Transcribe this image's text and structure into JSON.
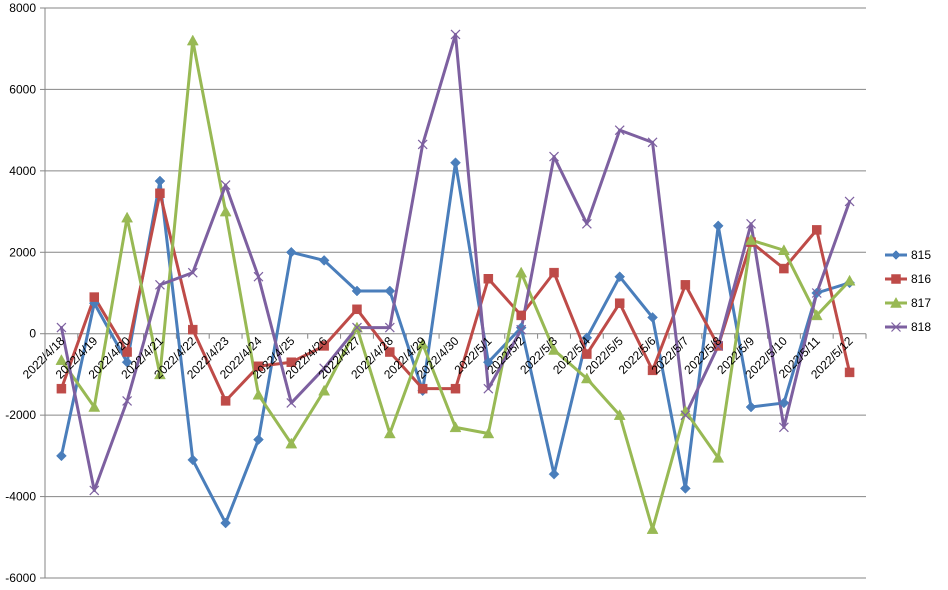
{
  "chart_data": {
    "type": "line",
    "title": "",
    "xlabel": "",
    "ylabel": "",
    "ylim": [
      -6000,
      8000
    ],
    "yticks": [
      -6000,
      -4000,
      -2000,
      0,
      2000,
      4000,
      6000,
      8000
    ],
    "grid": "horizontal",
    "legend_position": "right",
    "categories": [
      "2022/4/18",
      "2022/4/19",
      "2022/4/20",
      "2022/4/21",
      "2022/4/22",
      "2022/4/23",
      "2022/4/24",
      "2022/4/25",
      "2022/4/26",
      "2022/4/27",
      "2022/4/28",
      "2022/4/29",
      "2022/4/30",
      "2022/5/1",
      "2022/5/2",
      "2022/5/3",
      "2022/5/4",
      "2022/5/5",
      "2022/5/6",
      "2022/5/7",
      "2022/5/8",
      "2022/5/9",
      "2022/5/10",
      "2022/5/11",
      "2022/5/12"
    ],
    "series": [
      {
        "name": "815",
        "color": "#4A7EBB",
        "marker": "diamond",
        "values": [
          -3000,
          750,
          -700,
          3750,
          -3100,
          -4650,
          -2600,
          2000,
          1800,
          1050,
          1050,
          -1400,
          4200,
          -700,
          150,
          -3450,
          -100,
          1400,
          400,
          -3800,
          2650,
          -1800,
          -1700,
          1000,
          1250
        ]
      },
      {
        "name": "816",
        "color": "#BE4B48",
        "marker": "square",
        "values": [
          -1350,
          900,
          -450,
          3450,
          100,
          -1650,
          -800,
          -700,
          -300,
          600,
          -450,
          -1350,
          -1350,
          1350,
          450,
          1500,
          -500,
          750,
          -900,
          1200,
          -300,
          2250,
          1600,
          2550,
          -950
        ]
      },
      {
        "name": "817",
        "color": "#98B954",
        "marker": "triangle",
        "values": [
          -650,
          -1800,
          2850,
          -1000,
          7200,
          3000,
          -1500,
          -2700,
          -1400,
          150,
          -2450,
          -250,
          -2300,
          -2450,
          1500,
          -400,
          -1100,
          -2000,
          -4800,
          -1900,
          -3050,
          2300,
          2050,
          450,
          1300
        ]
      },
      {
        "name": "818",
        "color": "#7D60A0",
        "marker": "x",
        "values": [
          150,
          -3850,
          -1650,
          1200,
          1500,
          3650,
          1400,
          -1700,
          -850,
          150,
          150,
          4650,
          7350,
          -1350,
          100,
          4350,
          2700,
          5000,
          4700,
          -2000,
          -300,
          2700,
          -2300,
          1000,
          3250
        ]
      }
    ]
  }
}
